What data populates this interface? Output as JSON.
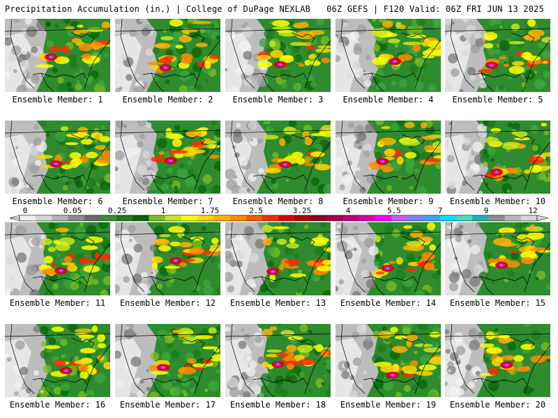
{
  "header": {
    "left_title": "Precipitation Accumulation (in.) | College of DuPage NEXLAB",
    "right_title": "06Z GEFS | F120 Valid: 06Z FRI JUN 13 2025"
  },
  "colorbar": {
    "labels": [
      "0",
      "0.05",
      "0.25",
      "1",
      "1.75",
      "2.5",
      "3.25",
      "4",
      "5.5",
      "7",
      "9",
      "12"
    ],
    "colors": [
      "#f0f0f0",
      "#d6d6d6",
      "#b4b4b4",
      "#8c8c8c",
      "#6a6a6a",
      "#3b8c3b",
      "#1e7a1e",
      "#0a640a",
      "#7fbf1f",
      "#c8e61e",
      "#ffff00",
      "#ffd700",
      "#ffb000",
      "#ff8c00",
      "#ff5a00",
      "#ff2a00",
      "#e00000",
      "#b00000",
      "#8b0020",
      "#a0004a",
      "#c0007a",
      "#e000b0",
      "#ff00ff",
      "#c060ff",
      "#8080ff",
      "#40a0ff",
      "#00e0ff",
      "#40e0c0",
      "#20b0b0",
      "#909090",
      "#b8b8b8",
      "#d8d8d8"
    ]
  },
  "panels": [
    {
      "label": "Ensemble Member: 1"
    },
    {
      "label": "Ensemble Member: 2"
    },
    {
      "label": "Ensemble Member: 3"
    },
    {
      "label": "Ensemble Member: 4"
    },
    {
      "label": "Ensemble Member: 5"
    },
    {
      "label": "Ensemble Member: 6"
    },
    {
      "label": "Ensemble Member: 7"
    },
    {
      "label": "Ensemble Member: 8"
    },
    {
      "label": "Ensemble Member: 9"
    },
    {
      "label": "Ensemble Member: 10"
    },
    {
      "label": "Ensemble Member: 11"
    },
    {
      "label": "Ensemble Member: 12"
    },
    {
      "label": "Ensemble Member: 13"
    },
    {
      "label": "Ensemble Member: 14"
    },
    {
      "label": "Ensemble Member: 15"
    },
    {
      "label": "Ensemble Member: 16"
    },
    {
      "label": "Ensemble Member: 17"
    },
    {
      "label": "Ensemble Member: 18"
    },
    {
      "label": "Ensemble Member: 19"
    },
    {
      "label": "Ensemble Member: 20"
    }
  ]
}
